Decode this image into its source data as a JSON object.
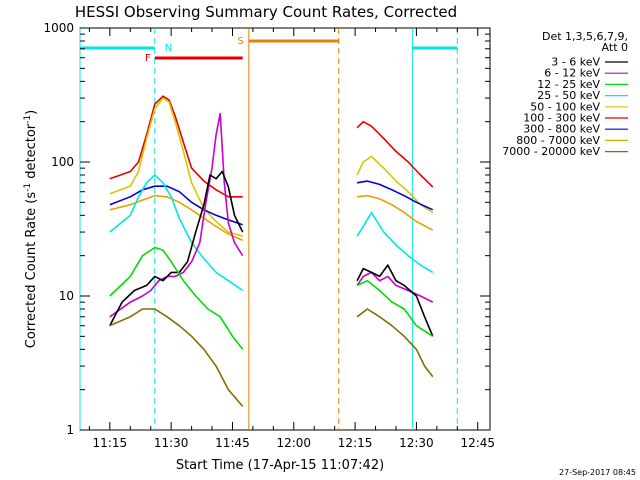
{
  "chart_data": {
    "type": "line",
    "title": "HESSI Observing Summary Count Rates, Corrected",
    "xlabel": "Start Time (17-Apr-15 11:07:42)",
    "ylabel": "Corrected Count Rate (s",
    "ylabel_sup": "-1",
    "ylabel_mid": " detector",
    "ylabel_end": ")",
    "yscale": "log",
    "ylim": [
      1,
      1000
    ],
    "xlim_minutes": [
      "11:07:42",
      "12:48:00"
    ],
    "x_ticks": [
      "11:15",
      "11:30",
      "11:45",
      "12:00",
      "12:15",
      "12:30",
      "12:45"
    ],
    "y_ticks": [
      "1",
      "10",
      "100",
      "1000"
    ],
    "timestamp": "27-Sep-2017 08:45",
    "legend": {
      "header1": "Det 1,3,5,6,7,9,",
      "header2": "Att 0",
      "entries": [
        {
          "label": "3 - 6 keV",
          "color": "#000000"
        },
        {
          "label": "6 - 12 keV",
          "color": "#cc00cc"
        },
        {
          "label": "12 - 25 keV",
          "color": "#00dd00"
        },
        {
          "label": "25 - 50 keV",
          "color": "#00e5e5"
        },
        {
          "label": "50 - 100 keV",
          "color": "#d4c800"
        },
        {
          "label": "100 - 300 keV",
          "color": "#e80000"
        },
        {
          "label": "300 - 800 keV",
          "color": "#0000dd"
        },
        {
          "label": "800 - 7000 keV",
          "color": "#e8a000"
        },
        {
          "label": "7000 - 20000 keV",
          "color": "#807000"
        }
      ]
    },
    "annotations": {
      "night_color": "#00e5e5",
      "saa_color": "#e88000",
      "flare_color": "#e80000",
      "night_label": "N",
      "saa_label": "S",
      "flare_label": "F",
      "night_bars": [
        [
          "11:07:42",
          "11:26:00"
        ],
        [
          "12:29:00",
          "12:40:00"
        ]
      ],
      "saa_bar": [
        "11:49:00",
        "12:11:00"
      ],
      "flare_bar": [
        "11:26:00",
        "11:47:30"
      ],
      "night_lines_solid": [
        "11:07:42",
        "12:29:00"
      ],
      "night_lines_dashed": [
        "11:26:00",
        "12:40:00"
      ],
      "saa_line_solid": "11:49:00",
      "saa_line_dashed": "12:11:00"
    },
    "segments": [
      [
        "11:15:00",
        "11:47:30"
      ],
      [
        "12:15:30",
        "12:34:00"
      ]
    ],
    "series": [
      {
        "name": "100 - 300 keV",
        "color": "#e80000",
        "times": [
          "11:15:00",
          "11:20:00",
          "11:22:00",
          "11:24:00",
          "11:26:00",
          "11:28:00",
          "11:29:30",
          "11:31:00",
          "11:33:00",
          "11:35:00",
          "11:38:00",
          "11:41:00",
          "11:44:00",
          "11:47:30",
          "12:15:30",
          "12:17:00",
          "12:19:00",
          "12:22:00",
          "12:25:00",
          "12:28:00",
          "12:31:00",
          "12:34:00"
        ],
        "values": [
          75,
          85,
          100,
          160,
          270,
          310,
          290,
          220,
          140,
          90,
          72,
          62,
          55,
          55,
          180,
          200,
          185,
          150,
          120,
          100,
          80,
          65
        ]
      },
      {
        "name": "50 - 100 keV",
        "color": "#d4c800",
        "times": [
          "11:15:00",
          "11:20:00",
          "11:22:00",
          "11:24:00",
          "11:26:00",
          "11:28:00",
          "11:29:30",
          "11:31:00",
          "11:33:00",
          "11:35:00",
          "11:38:00",
          "11:41:00",
          "11:44:00",
          "11:47:30",
          "12:15:30",
          "12:17:00",
          "12:19:00",
          "12:22:00",
          "12:25:00",
          "12:28:00",
          "12:31:00",
          "12:34:00"
        ],
        "values": [
          58,
          66,
          85,
          150,
          250,
          300,
          280,
          200,
          120,
          70,
          45,
          36,
          30,
          28,
          80,
          100,
          110,
          90,
          72,
          60,
          48,
          42
        ]
      },
      {
        "name": "300 - 800 keV",
        "color": "#0000dd",
        "times": [
          "11:15:00",
          "11:20:00",
          "11:23:00",
          "11:26:00",
          "11:29:00",
          "11:32:00",
          "11:35:00",
          "11:38:00",
          "11:41:00",
          "11:44:00",
          "11:47:30",
          "12:15:30",
          "12:18:00",
          "12:21:00",
          "12:24:00",
          "12:27:00",
          "12:30:00",
          "12:34:00"
        ],
        "values": [
          48,
          55,
          62,
          66,
          66,
          60,
          50,
          44,
          40,
          37,
          34,
          70,
          72,
          68,
          62,
          56,
          50,
          44
        ]
      },
      {
        "name": "800 - 7000 keV",
        "color": "#e8a000",
        "times": [
          "11:15:00",
          "11:20:00",
          "11:23:00",
          "11:26:00",
          "11:29:00",
          "11:32:00",
          "11:35:00",
          "11:38:00",
          "11:41:00",
          "11:44:00",
          "11:47:30",
          "12:15:30",
          "12:18:00",
          "12:21:00",
          "12:24:00",
          "12:27:00",
          "12:30:00",
          "12:34:00"
        ],
        "values": [
          44,
          48,
          52,
          56,
          55,
          50,
          44,
          38,
          33,
          29,
          26,
          55,
          56,
          53,
          48,
          42,
          36,
          31
        ]
      },
      {
        "name": "25 - 50 keV",
        "color": "#00e5e5",
        "times": [
          "11:15:00",
          "11:20:00",
          "11:22:00",
          "11:24:00",
          "11:26:00",
          "11:28:00",
          "11:30:00",
          "11:32:00",
          "11:35:00",
          "11:38:00",
          "11:41:00",
          "11:44:00",
          "11:47:30",
          "12:15:30",
          "12:17:00",
          "12:19:00",
          "12:22:00",
          "12:25:00",
          "12:28:00",
          "12:31:00",
          "12:34:00"
        ],
        "values": [
          30,
          40,
          55,
          70,
          80,
          70,
          55,
          38,
          25,
          19,
          15,
          13,
          11,
          28,
          33,
          42,
          30,
          24,
          20,
          17,
          15
        ]
      },
      {
        "name": "6 - 12 keV",
        "color": "#cc00cc",
        "times": [
          "11:15:00",
          "11:20:00",
          "11:23:00",
          "11:25:00",
          "11:27:00",
          "11:29:00",
          "11:31:00",
          "11:33:00",
          "11:35:00",
          "11:37:00",
          "11:38:30",
          "11:40:00",
          "11:41:00",
          "11:42:00",
          "11:43:00",
          "11:44:00",
          "11:45:30",
          "11:47:30",
          "12:15:30",
          "12:17:00",
          "12:19:00",
          "12:21:00",
          "12:23:00",
          "12:25:00",
          "12:28:00",
          "12:31:00",
          "12:34:00"
        ],
        "values": [
          7,
          9,
          10,
          11,
          13,
          14,
          14,
          15,
          18,
          25,
          50,
          90,
          160,
          230,
          70,
          35,
          25,
          20,
          12,
          14,
          15,
          13,
          14,
          12,
          11,
          10,
          9
        ]
      },
      {
        "name": "3 - 6 keV",
        "color": "#000000",
        "times": [
          "11:15:00",
          "11:18:00",
          "11:21:00",
          "11:24:00",
          "11:26:00",
          "11:28:00",
          "11:30:00",
          "11:32:00",
          "11:34:00",
          "11:36:00",
          "11:38:00",
          "11:39:30",
          "11:41:00",
          "11:42:30",
          "11:44:00",
          "11:45:30",
          "11:47:30",
          "12:15:30",
          "12:17:00",
          "12:19:00",
          "12:21:00",
          "12:23:00",
          "12:25:00",
          "12:27:00",
          "12:30:00",
          "12:32:00",
          "12:34:00"
        ],
        "values": [
          6,
          9,
          11,
          12,
          14,
          13,
          15,
          15,
          18,
          30,
          48,
          80,
          75,
          85,
          65,
          40,
          30,
          13,
          16,
          15,
          14,
          17,
          13,
          12,
          10,
          7,
          5
        ]
      },
      {
        "name": "12 - 25 keV",
        "color": "#00dd00",
        "times": [
          "11:15:00",
          "11:20:00",
          "11:23:00",
          "11:26:00",
          "11:28:00",
          "11:30:00",
          "11:33:00",
          "11:36:00",
          "11:39:00",
          "11:42:00",
          "11:45:00",
          "11:47:30",
          "12:15:30",
          "12:18:00",
          "12:21:00",
          "12:24:00",
          "12:27:00",
          "12:30:00",
          "12:34:00"
        ],
        "values": [
          10,
          14,
          20,
          23,
          22,
          18,
          13,
          10,
          8,
          7,
          5,
          4,
          12,
          13,
          11,
          9,
          8,
          6,
          5
        ]
      },
      {
        "name": "7000 - 20000 keV",
        "color": "#807000",
        "times": [
          "11:15:00",
          "11:20:00",
          "11:23:00",
          "11:26:00",
          "11:29:00",
          "11:32:00",
          "11:35:00",
          "11:38:00",
          "11:41:00",
          "11:44:00",
          "11:47:30",
          "12:15:30",
          "12:18:00",
          "12:21:00",
          "12:24:00",
          "12:27:00",
          "12:30:00",
          "12:32:00",
          "12:34:00"
        ],
        "values": [
          6,
          7,
          8,
          8,
          7,
          6,
          5,
          4,
          3,
          2,
          1.5,
          7,
          8,
          7,
          6,
          5,
          4,
          3,
          2.5
        ]
      }
    ]
  }
}
